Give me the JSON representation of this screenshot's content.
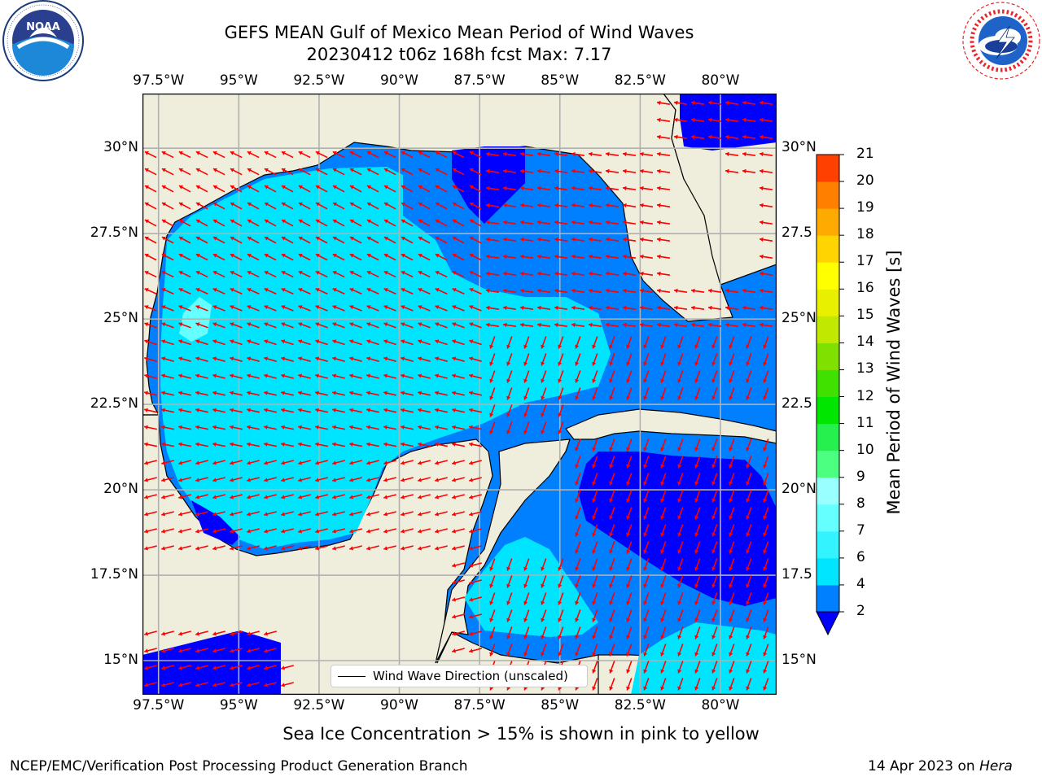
{
  "title": {
    "line1": "GEFS MEAN Gulf of Mexico Mean Period of Wind Waves",
    "line2": "20230412 t06z 168h fcst   Max: 7.17"
  },
  "logos": {
    "left": {
      "name": "noaa-logo",
      "text": "NOAA",
      "ring_text": "NATIONAL OCEANIC AND ATMOSPHERIC ADMINISTRATION · U.S. DEPARTMENT OF COMMERCE"
    },
    "right": {
      "name": "nws-logo",
      "ring_text": "NATIONAL WEATHER SERVICE"
    }
  },
  "map": {
    "lon_ticks": [
      "97.5°W",
      "95°W",
      "92.5°W",
      "90°W",
      "87.5°W",
      "85°W",
      "82.5°W",
      "80°W"
    ],
    "lat_ticks_left": [
      "30°N",
      "27.5°N",
      "25°N",
      "22.5°N",
      "20°N",
      "17.5°N",
      "15°N"
    ],
    "lat_ticks_right": [
      "30°N",
      "27.5",
      "25°N",
      "22.5",
      "20°N",
      "17.5",
      "15°N"
    ],
    "lon_range": [
      -98,
      -78.25
    ],
    "lat_range": [
      14,
      31.6
    ],
    "grid": true,
    "legend": "Wind Wave Direction (unscaled)",
    "land_color": "#efeddc",
    "arrow_color": "#ff0000"
  },
  "colorbar": {
    "label": "Mean Period of Wind Waves [s]",
    "levels": [
      "2",
      "4",
      "6",
      "7",
      "8",
      "9",
      "10",
      "11",
      "12",
      "13",
      "14",
      "15",
      "16",
      "17",
      "18",
      "19",
      "20",
      "21"
    ],
    "colors": [
      "#0080ff",
      "#00e5ff",
      "#33f3ff",
      "#66ffff",
      "#99ffff",
      "#4dff80",
      "#26f04d",
      "#00e600",
      "#40e000",
      "#80e000",
      "#c0e800",
      "#e8f000",
      "#ffff00",
      "#ffd400",
      "#ffaa00",
      "#ff8000",
      "#ff4000",
      "#ff0000"
    ],
    "under_color": "#0000ff",
    "extend": "min"
  },
  "footer": {
    "note": "Sea Ice Concentration > 15% is shown in pink to yellow",
    "left": "NCEP/EMC/Verification Post Processing Product Generation Branch",
    "date": "14 Apr 2023 on ",
    "machine": "Hera"
  }
}
